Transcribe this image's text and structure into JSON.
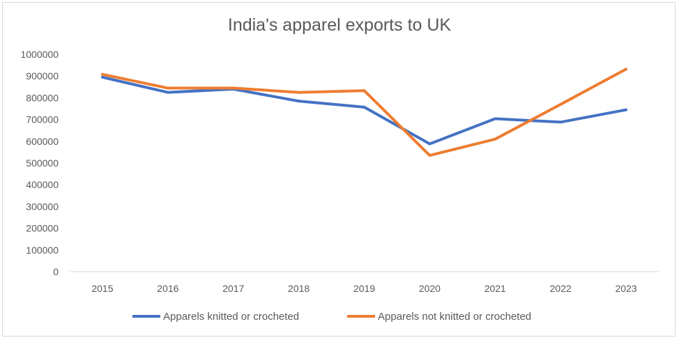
{
  "chart_data": {
    "type": "line",
    "title": "India's apparel exports to UK",
    "xlabel": "",
    "ylabel": "",
    "categories": [
      "2015",
      "2016",
      "2017",
      "2018",
      "2019",
      "2020",
      "2021",
      "2022",
      "2023"
    ],
    "ylim": [
      0,
      1000000
    ],
    "yticks": [
      "0",
      "100000",
      "200000",
      "300000",
      "400000",
      "500000",
      "600000",
      "700000",
      "800000",
      "900000",
      "1000000"
    ],
    "grid": false,
    "legend_position": "bottom",
    "series": [
      {
        "name": "Apparels knitted or crocheted",
        "color": "#4472C4",
        "values": [
          895000,
          825000,
          840000,
          785000,
          757000,
          588000,
          704000,
          688000,
          745000
        ]
      },
      {
        "name": "Apparels not knitted or crocheted",
        "color": "#ED7D31",
        "values": [
          908000,
          845000,
          845000,
          825000,
          833000,
          535000,
          610000,
          770000,
          932000
        ]
      }
    ]
  }
}
